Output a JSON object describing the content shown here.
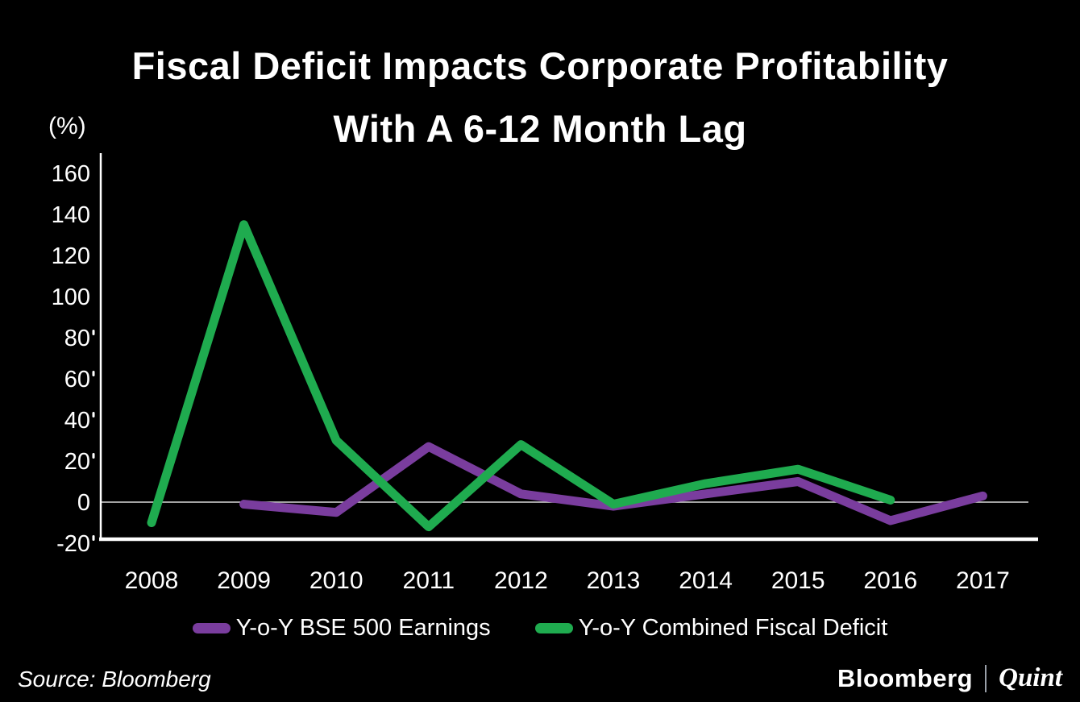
{
  "header": {
    "title_line1": "Fiscal Deficit Impacts Corporate Profitability",
    "title_line2": "With A 6-12 Month Lag"
  },
  "axis_unit": "(%)",
  "chart_data": {
    "type": "line",
    "title": "Fiscal Deficit Impacts Corporate Profitability With A 6-12 Month Lag",
    "ylabel": "(%)",
    "xlabel": "",
    "categories": [
      "2008",
      "2009",
      "2010",
      "2011",
      "2012",
      "2013",
      "2014",
      "2015",
      "2016",
      "2017"
    ],
    "series": [
      {
        "name": "Y-o-Y BSE 500 Earnings",
        "color": "#7a3d9e",
        "values": [
          null,
          -1,
          -5,
          27,
          4,
          -2,
          4,
          10,
          -9,
          3
        ]
      },
      {
        "name": "Y-o-Y Combined Fiscal Deficit",
        "color": "#1fab4f",
        "values": [
          -10,
          135,
          30,
          -12,
          28,
          -1,
          9,
          16,
          1,
          null
        ]
      }
    ],
    "yticks": [
      160,
      140,
      120,
      100,
      80,
      60,
      40,
      20,
      0,
      -20
    ],
    "ylim": [
      -20,
      160
    ],
    "grid": "zero-line-only",
    "legend_position": "bottom",
    "background": "#000000",
    "axis_color": "#ffffff",
    "zero_line_color": "#d9d9d9"
  },
  "footer": {
    "source": "Source: Bloomberg",
    "brand": {
      "bloomberg": "Bloomberg",
      "separator": "|",
      "quint": "Quint"
    }
  }
}
